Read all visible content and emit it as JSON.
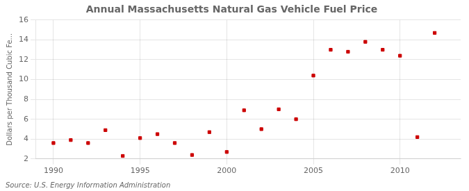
{
  "chart_data": {
    "type": "scatter",
    "title": "Annual Massachusetts Natural Gas Vehicle Fuel Price",
    "ylabel": "Dollars per Thousand Cubic Fe...",
    "annotations": [
      "Source: U.S. Energy Information Administration"
    ],
    "x": [
      1990,
      1991,
      1992,
      1993,
      1994,
      1995,
      1996,
      1997,
      1998,
      1999,
      2000,
      2001,
      2002,
      2003,
      2004,
      2005,
      2006,
      2007,
      2008,
      2009,
      2010,
      2011,
      2012
    ],
    "values": [
      3.6,
      3.9,
      3.6,
      4.9,
      2.3,
      4.1,
      4.5,
      3.6,
      2.4,
      4.7,
      2.7,
      6.9,
      5.0,
      7.0,
      6.0,
      10.4,
      13.0,
      12.8,
      13.8,
      13.0,
      12.4,
      4.2,
      14.7
    ],
    "color": "#cc0000",
    "marker": "square",
    "xlim": [
      1989.0,
      2013.5
    ],
    "xticks": [
      1990,
      1995,
      2000,
      2005,
      2010
    ],
    "ylim": [
      2,
      16
    ],
    "yticks": [
      2,
      4,
      6,
      8,
      10,
      12,
      14,
      16
    ],
    "grid": true
  }
}
